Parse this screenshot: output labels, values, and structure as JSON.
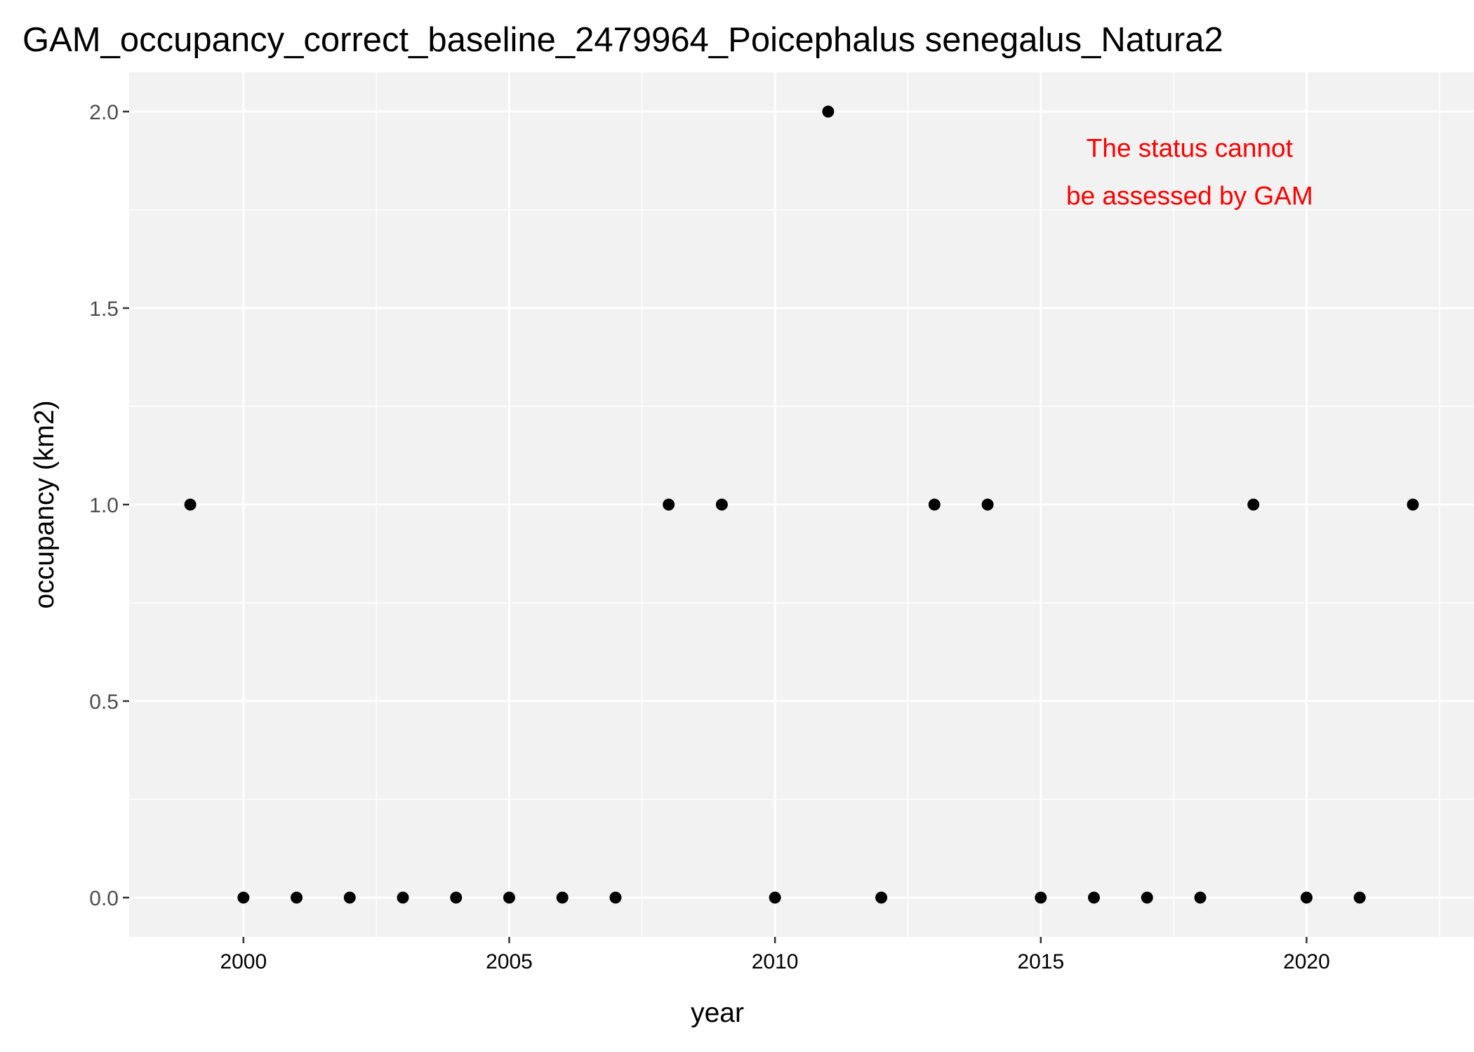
{
  "chart_data": {
    "type": "scatter",
    "title": "GAM_occupancy_correct_baseline_2479964_Poicephalus senegalus_Natura2",
    "xlabel": "year",
    "ylabel": "occupancy (km2)",
    "xlim": [
      1997.85,
      2023.15
    ],
    "ylim": [
      -0.1,
      2.1
    ],
    "x_ticks": [
      2000,
      2005,
      2010,
      2015,
      2020
    ],
    "y_ticks": [
      0.0,
      0.5,
      1.0,
      1.5,
      2.0
    ],
    "x_tick_labels": [
      "2000",
      "2005",
      "2010",
      "2015",
      "2020"
    ],
    "y_tick_labels": [
      "0.0",
      "0.5",
      "1.0",
      "1.5",
      "2.0"
    ],
    "grid": true,
    "panel_background": "#f2f2f2",
    "point_color": "#000000",
    "points": [
      {
        "x": 1999,
        "y": 1
      },
      {
        "x": 2000,
        "y": 0
      },
      {
        "x": 2001,
        "y": 0
      },
      {
        "x": 2002,
        "y": 0
      },
      {
        "x": 2003,
        "y": 0
      },
      {
        "x": 2004,
        "y": 0
      },
      {
        "x": 2005,
        "y": 0
      },
      {
        "x": 2006,
        "y": 0
      },
      {
        "x": 2007,
        "y": 0
      },
      {
        "x": 2008,
        "y": 1
      },
      {
        "x": 2009,
        "y": 1
      },
      {
        "x": 2010,
        "y": 0
      },
      {
        "x": 2011,
        "y": 2
      },
      {
        "x": 2012,
        "y": 0
      },
      {
        "x": 2013,
        "y": 1
      },
      {
        "x": 2014,
        "y": 1
      },
      {
        "x": 2015,
        "y": 0
      },
      {
        "x": 2016,
        "y": 0
      },
      {
        "x": 2017,
        "y": 0
      },
      {
        "x": 2018,
        "y": 0
      },
      {
        "x": 2019,
        "y": 1
      },
      {
        "x": 2020,
        "y": 0
      },
      {
        "x": 2021,
        "y": 0
      },
      {
        "x": 2022,
        "y": 1
      }
    ],
    "annotation": {
      "lines": [
        "The status cannot",
        "be assessed by GAM"
      ],
      "color": "#ff0000",
      "placement": "top-right"
    }
  }
}
